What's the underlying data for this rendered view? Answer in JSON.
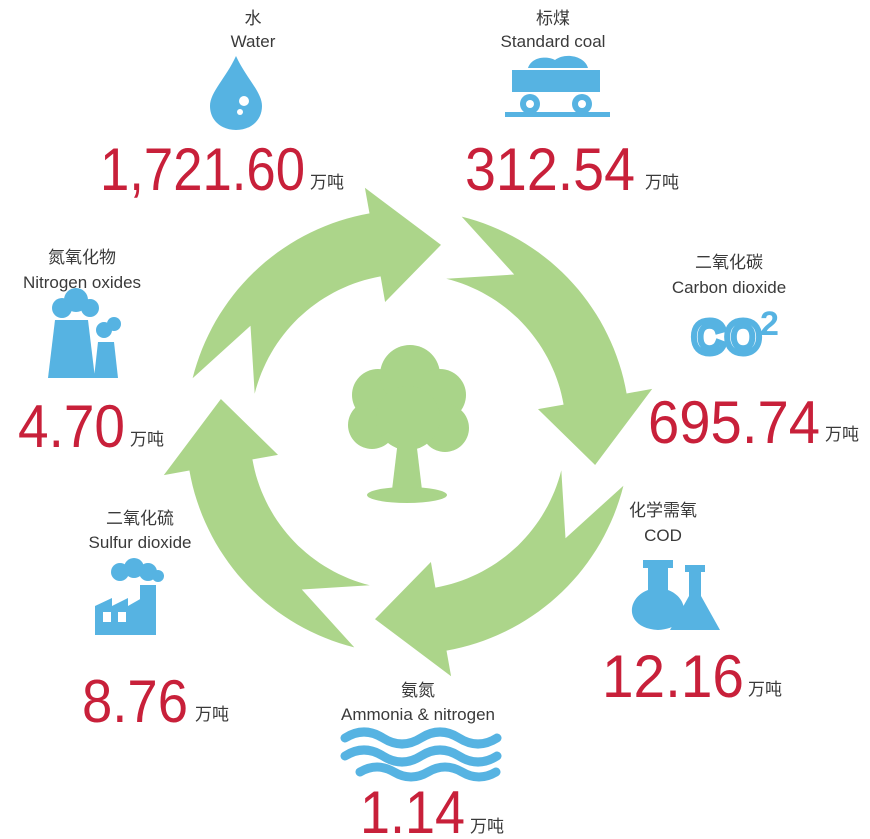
{
  "items": [
    {
      "name_zh": "水",
      "name_en": "Water",
      "value": "1,721.60",
      "unit": "万吨"
    },
    {
      "name_zh": "标煤",
      "name_en": "Standard coal",
      "value": "312.54",
      "unit": "万吨"
    },
    {
      "name_zh": "二氧化碳",
      "name_en": "Carbon dioxide",
      "value": "695.74",
      "unit": "万吨"
    },
    {
      "name_zh": "化学需氧",
      "name_en": "COD",
      "value": "12.16",
      "unit": "万吨"
    },
    {
      "name_zh": "氨氮",
      "name_en": "Ammonia & nitrogen",
      "value": "1.14",
      "unit": "万吨"
    },
    {
      "name_zh": "二氧化硫",
      "name_en": "Sulfur dioxide",
      "value": "8.76",
      "unit": "万吨"
    },
    {
      "name_zh": "氮氧化物",
      "name_en": "Nitrogen oxides",
      "value": "4.70",
      "unit": "万吨"
    }
  ]
}
